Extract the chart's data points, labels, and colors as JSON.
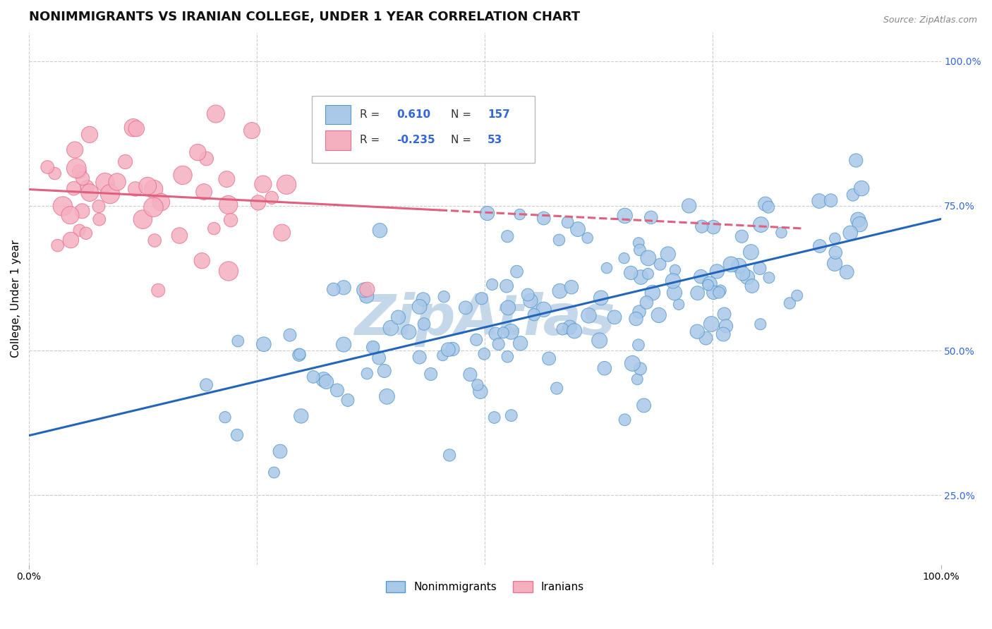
{
  "title": "NONIMMIGRANTS VS IRANIAN COLLEGE, UNDER 1 YEAR CORRELATION CHART",
  "source": "Source: ZipAtlas.com",
  "ylabel": "College, Under 1 year",
  "xlim": [
    0.0,
    1.0
  ],
  "ylim": [
    0.13,
    1.05
  ],
  "y_ticks_right": [
    0.25,
    0.5,
    0.75,
    1.0
  ],
  "y_tick_labels_right": [
    "25.0%",
    "50.0%",
    "75.0%",
    "100.0%"
  ],
  "blue_R": 0.61,
  "blue_N": 157,
  "pink_R": -0.235,
  "pink_N": 53,
  "blue_color": "#aac8e8",
  "pink_color": "#f5b0c0",
  "blue_edge_color": "#5599cc",
  "pink_edge_color": "#e87090",
  "blue_line_color": "#2266bb",
  "pink_line_color": "#e06080",
  "legend_R_color": "#3366dd",
  "background_color": "#ffffff",
  "grid_color": "#cccccc",
  "watermark": "ZipAtlas",
  "watermark_color": "#c5d8ea",
  "title_fontsize": 13,
  "label_fontsize": 11,
  "tick_fontsize": 10,
  "seed": 42
}
